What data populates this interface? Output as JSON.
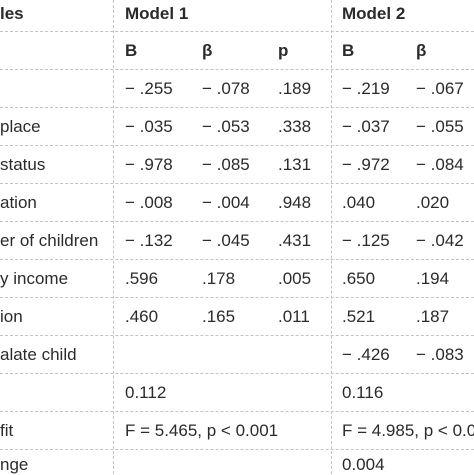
{
  "header": {
    "variables_label": "les",
    "model1": "Model 1",
    "model2": "Model 2"
  },
  "subheader": {
    "m1_B": "B",
    "m1_beta": "β",
    "m1_p": "p",
    "m2_B": "B",
    "m2_beta": "β"
  },
  "rows": [
    {
      "label": "",
      "m1_B": "− .255",
      "m1_beta": "− .078",
      "m1_p": ".189",
      "m2_B": "− .219",
      "m2_beta": "− .067"
    },
    {
      "label": "place",
      "m1_B": "− .035",
      "m1_beta": "− .053",
      "m1_p": ".338",
      "m2_B": "− .037",
      "m2_beta": "− .055"
    },
    {
      "label": "status",
      "m1_B": "− .978",
      "m1_beta": "− .085",
      "m1_p": ".131",
      "m2_B": "− .972",
      "m2_beta": "− .084"
    },
    {
      "label": "ation",
      "m1_B": "− .008",
      "m1_beta": "− .004",
      "m1_p": ".948",
      "m2_B": ".040",
      "m2_beta": ".020"
    },
    {
      "label": "er of children",
      "m1_B": "− .132",
      "m1_beta": "− .045",
      "m1_p": ".431",
      "m2_B": "− .125",
      "m2_beta": "− .042"
    },
    {
      "label": "y income",
      "m1_B": ".596",
      "m1_beta": ".178",
      "m1_p": ".005",
      "m2_B": ".650",
      "m2_beta": ".194"
    },
    {
      "label": "ion",
      "m1_B": ".460",
      "m1_beta": ".165",
      "m1_p": ".011",
      "m2_B": ".521",
      "m2_beta": ".187"
    },
    {
      "label": "alate child",
      "m1_B": "",
      "m1_beta": "",
      "m1_p": "",
      "m2_B": "− .426",
      "m2_beta": "− .083"
    }
  ],
  "r2": {
    "label": "",
    "m1": "0.112",
    "m2": "0.116"
  },
  "fit": {
    "label": "fit",
    "m1": "F = 5.465, p < 0.001",
    "m2": "F = 4.985, p < 0.00"
  },
  "change": {
    "label": "nge",
    "m1": "",
    "m2": "0.004"
  }
}
